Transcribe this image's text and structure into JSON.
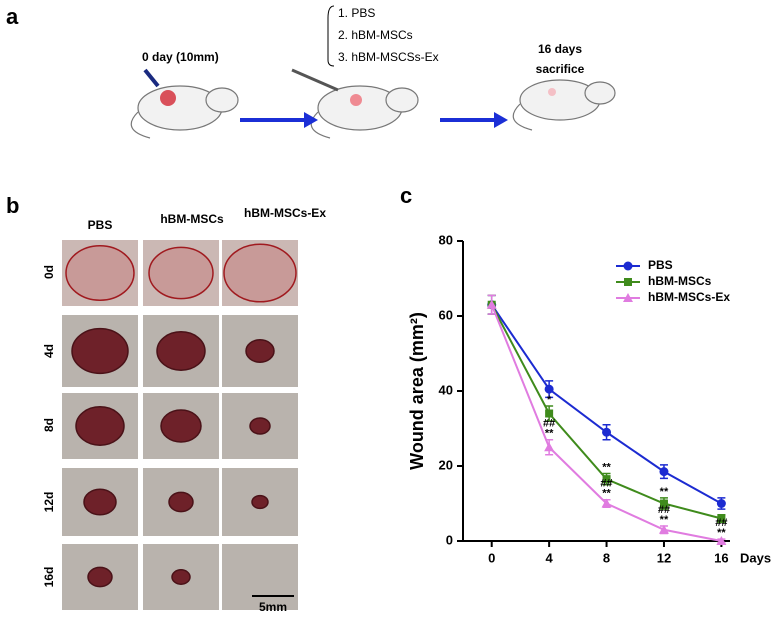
{
  "panel_labels": [
    "a",
    "b",
    "c"
  ],
  "schematic": {
    "start_label": "0 day (10mm)",
    "treatments": [
      "1. PBS",
      "2. hBM-MSCs",
      "3. hBM-MSCSs-Ex"
    ],
    "end_label": [
      "16 days",
      "sacrifice"
    ]
  },
  "photos": {
    "columns": [
      "PBS",
      "hBM-MSCs",
      "hBM-MSCs-Ex"
    ],
    "rows": [
      "0d",
      "4d",
      "8d",
      "12d",
      "16d"
    ],
    "scale_bar": "5mm"
  },
  "chart_data": {
    "type": "line",
    "x_label": "Days",
    "y_label": "Wound area (mm²)",
    "x": [
      0,
      4,
      8,
      12,
      16
    ],
    "xlim": [
      -2,
      16.6
    ],
    "xticks": [
      0,
      4,
      8,
      12,
      16
    ],
    "ylim": [
      0,
      80
    ],
    "yticks": [
      0,
      20,
      40,
      60,
      80
    ],
    "legend": "upper right",
    "series": [
      {
        "name": "PBS",
        "color": "#1c2bd1",
        "marker": "circle",
        "values": [
          63,
          40.5,
          29,
          18.5,
          10
        ],
        "errors": [
          2.5,
          2.2,
          2,
          1.8,
          1.5
        ],
        "point_labels": [
          null,
          null,
          null,
          null,
          null
        ]
      },
      {
        "name": "hBM-MSCs",
        "color": "#3f8b1c",
        "marker": "square",
        "values": [
          63,
          34,
          16.5,
          10,
          6
        ],
        "errors": [
          2.5,
          2,
          1.5,
          1.5,
          1
        ],
        "point_labels": [
          null,
          [
            "*"
          ],
          [
            "**"
          ],
          [
            "**"
          ],
          null
        ]
      },
      {
        "name": "hBM-MSCs-Ex",
        "color": "#e07ce0",
        "marker": "triangle",
        "values": [
          63,
          25,
          10,
          3,
          0
        ],
        "errors": [
          2.5,
          2,
          1,
          1,
          0.5
        ],
        "point_labels": [
          null,
          [
            "##",
            "**"
          ],
          [
            "##",
            "**"
          ],
          [
            "##",
            "**"
          ],
          [
            "##",
            "**"
          ]
        ]
      }
    ]
  }
}
